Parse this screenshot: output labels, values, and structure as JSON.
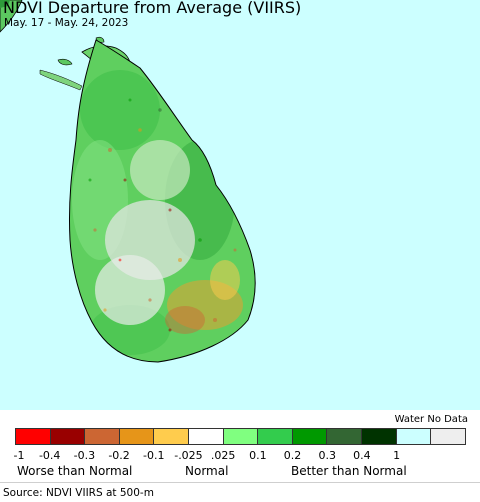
{
  "title": "NDVI Departure from Average (VIIRS)",
  "subtitle": "May. 17 - May. 24, 2023",
  "legend": {
    "no_data_label": "Water No Data",
    "colors": [
      "#ff0000",
      "#990000",
      "#cc6633",
      "#e69519",
      "#ffcc4d",
      "#ffffff",
      "#80ff80",
      "#33cc4d",
      "#009900",
      "#336633",
      "#003300",
      "#ccffff",
      "#eeeeee"
    ],
    "ticks": [
      "-1",
      "-0.4",
      "-0.3",
      "-0.2",
      "-0.1",
      "-.025",
      ".025",
      "0.1",
      "0.2",
      "0.3",
      "0.4",
      "1"
    ],
    "worse_label": "Worse than Normal",
    "normal_label": "Normal",
    "better_label": "Better than Normal"
  },
  "source": "Source: NDVI VIIRS at 500-m"
}
